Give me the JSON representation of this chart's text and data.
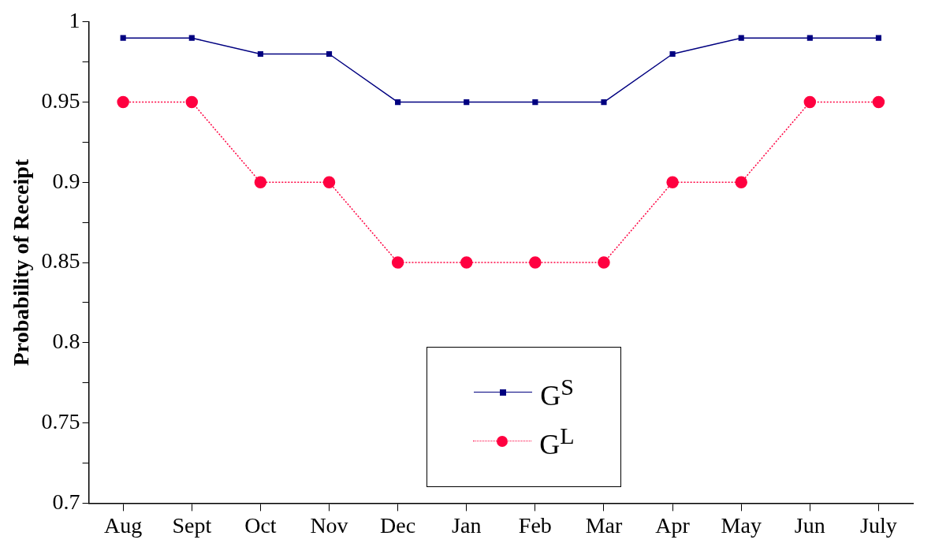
{
  "chart_data": {
    "type": "line",
    "ylabel": "Probability of Receipt",
    "categories": [
      "Aug",
      "Sept",
      "Oct",
      "Nov",
      "Dec",
      "Jan",
      "Feb",
      "Mar",
      "Apr",
      "May",
      "Jun",
      "July"
    ],
    "series": [
      {
        "name": "G$^{S}$",
        "color": "#000080",
        "marker": "square",
        "line_style": "solid",
        "values": [
          0.99,
          0.99,
          0.98,
          0.98,
          0.95,
          0.95,
          0.95,
          0.95,
          0.98,
          0.99,
          0.99,
          0.99
        ]
      },
      {
        "name": "G$^{L}$",
        "color": "#ff0040",
        "marker": "circle",
        "line_style": "dotted",
        "values": [
          0.95,
          0.95,
          0.9,
          0.9,
          0.85,
          0.85,
          0.85,
          0.85,
          0.9,
          0.9,
          0.95,
          0.95
        ]
      }
    ],
    "ylim": [
      0.7,
      1
    ],
    "yticks": [
      0.7,
      {
        "value": 0.725,
        "label": null
      },
      0.75,
      {
        "value": 0.775,
        "label": null
      },
      0.8,
      {
        "value": 0.825,
        "label": null
      },
      0.85,
      {
        "value": 0.875,
        "label": null
      },
      0.9,
      {
        "value": 0.925,
        "label": null
      },
      0.95,
      {
        "value": 0.975,
        "label": null
      },
      1
    ],
    "grid": false,
    "legend": "bottom"
  }
}
